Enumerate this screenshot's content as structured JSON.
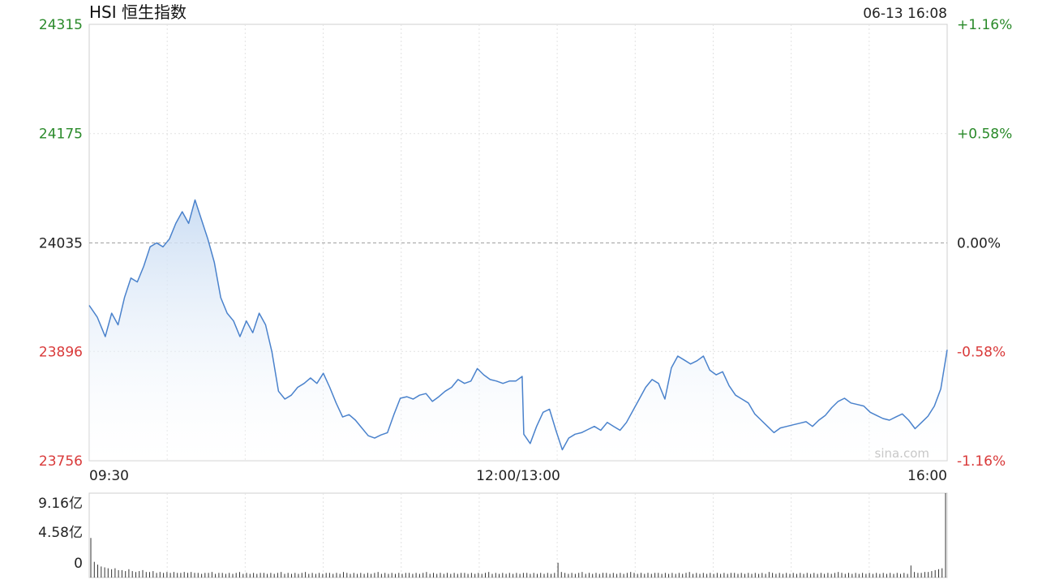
{
  "header": {
    "title": "HSI 恒生指数",
    "timestamp": "06-13 16:08"
  },
  "watermark": "sina.com",
  "colors": {
    "line": "#4a82cc",
    "fill_top": "#c9dcf3",
    "up": "#2a8a2a",
    "down": "#d93a3a",
    "grid": "#d8d8d8",
    "volume": "#333333"
  },
  "chart_data": {
    "type": "line",
    "title": "HSI 恒生指数",
    "prev_close": 24035,
    "ylim": [
      23756,
      24315
    ],
    "y_ticks_left": [
      {
        "value": 24315,
        "label": "24315",
        "tone": "up"
      },
      {
        "value": 24175,
        "label": "24175",
        "tone": "up"
      },
      {
        "value": 24035,
        "label": "24035",
        "tone": "flat"
      },
      {
        "value": 23896,
        "label": "23896",
        "tone": "down"
      },
      {
        "value": 23756,
        "label": "23756",
        "tone": "down"
      }
    ],
    "y_ticks_right": [
      {
        "value": 24315,
        "label": "+1.16%",
        "tone": "up"
      },
      {
        "value": 24175,
        "label": "+0.58%",
        "tone": "up"
      },
      {
        "value": 24035,
        "label": "0.00%",
        "tone": "flat"
      },
      {
        "value": 23896,
        "label": "-0.58%",
        "tone": "down"
      },
      {
        "value": 23756,
        "label": "-1.16%",
        "tone": "down"
      }
    ],
    "x_ticks": [
      {
        "value": "09:30",
        "label": "09:30"
      },
      {
        "value": "12:00/13:00",
        "label": "12:00/13:00"
      },
      {
        "value": "16:00",
        "label": "16:00"
      }
    ],
    "series": [
      {
        "values": [
          [
            0,
            23955
          ],
          [
            5,
            23940
          ],
          [
            10,
            23915
          ],
          [
            14,
            23945
          ],
          [
            18,
            23930
          ],
          [
            22,
            23965
          ],
          [
            26,
            23990
          ],
          [
            30,
            23985
          ],
          [
            34,
            24005
          ],
          [
            38,
            24030
          ],
          [
            42,
            24035
          ],
          [
            46,
            24030
          ],
          [
            50,
            24040
          ],
          [
            54,
            24060
          ],
          [
            58,
            24075
          ],
          [
            62,
            24060
          ],
          [
            66,
            24090
          ],
          [
            70,
            24065
          ],
          [
            74,
            24040
          ],
          [
            78,
            24010
          ],
          [
            82,
            23965
          ],
          [
            86,
            23945
          ],
          [
            90,
            23935
          ],
          [
            94,
            23915
          ],
          [
            98,
            23935
          ],
          [
            102,
            23920
          ],
          [
            106,
            23945
          ],
          [
            110,
            23930
          ],
          [
            114,
            23895
          ],
          [
            118,
            23845
          ],
          [
            122,
            23835
          ],
          [
            126,
            23840
          ],
          [
            130,
            23850
          ],
          [
            134,
            23855
          ],
          [
            138,
            23862
          ],
          [
            142,
            23855
          ],
          [
            146,
            23868
          ],
          [
            150,
            23850
          ],
          [
            154,
            23830
          ],
          [
            158,
            23812
          ],
          [
            162,
            23815
          ],
          [
            166,
            23808
          ],
          [
            170,
            23798
          ],
          [
            174,
            23788
          ],
          [
            178,
            23785
          ],
          [
            182,
            23789
          ],
          [
            186,
            23792
          ],
          [
            190,
            23815
          ],
          [
            194,
            23836
          ],
          [
            198,
            23838
          ],
          [
            202,
            23835
          ],
          [
            206,
            23840
          ],
          [
            210,
            23842
          ],
          [
            214,
            23832
          ],
          [
            218,
            23838
          ],
          [
            222,
            23845
          ],
          [
            226,
            23850
          ],
          [
            230,
            23860
          ],
          [
            234,
            23855
          ],
          [
            238,
            23858
          ],
          [
            242,
            23874
          ],
          [
            246,
            23866
          ],
          [
            250,
            23860
          ],
          [
            254,
            23858
          ],
          [
            258,
            23855
          ],
          [
            262,
            23858
          ],
          [
            266,
            23858
          ],
          [
            270,
            23864
          ],
          [
            271,
            23790
          ],
          [
            275,
            23778
          ],
          [
            279,
            23800
          ],
          [
            283,
            23818
          ],
          [
            287,
            23822
          ],
          [
            291,
            23795
          ],
          [
            295,
            23770
          ],
          [
            299,
            23785
          ],
          [
            303,
            23790
          ],
          [
            307,
            23792
          ],
          [
            311,
            23796
          ],
          [
            315,
            23800
          ],
          [
            319,
            23795
          ],
          [
            323,
            23805
          ],
          [
            327,
            23800
          ],
          [
            331,
            23795
          ],
          [
            335,
            23805
          ],
          [
            339,
            23820
          ],
          [
            343,
            23835
          ],
          [
            347,
            23850
          ],
          [
            351,
            23860
          ],
          [
            355,
            23855
          ],
          [
            359,
            23835
          ],
          [
            363,
            23875
          ],
          [
            367,
            23890
          ],
          [
            371,
            23885
          ],
          [
            375,
            23880
          ],
          [
            379,
            23884
          ],
          [
            383,
            23890
          ],
          [
            387,
            23872
          ],
          [
            391,
            23866
          ],
          [
            395,
            23870
          ],
          [
            399,
            23852
          ],
          [
            403,
            23840
          ],
          [
            407,
            23835
          ],
          [
            411,
            23830
          ],
          [
            415,
            23816
          ],
          [
            419,
            23808
          ],
          [
            423,
            23800
          ],
          [
            427,
            23792
          ],
          [
            431,
            23798
          ],
          [
            435,
            23800
          ],
          [
            439,
            23802
          ],
          [
            443,
            23804
          ],
          [
            447,
            23806
          ],
          [
            451,
            23800
          ],
          [
            455,
            23808
          ],
          [
            459,
            23814
          ],
          [
            463,
            23824
          ],
          [
            467,
            23832
          ],
          [
            471,
            23836
          ],
          [
            475,
            23830
          ],
          [
            479,
            23828
          ],
          [
            483,
            23826
          ],
          [
            487,
            23818
          ],
          [
            491,
            23814
          ],
          [
            495,
            23810
          ],
          [
            499,
            23808
          ],
          [
            503,
            23812
          ],
          [
            507,
            23816
          ],
          [
            511,
            23808
          ],
          [
            515,
            23797
          ],
          [
            519,
            23805
          ],
          [
            523,
            23813
          ],
          [
            527,
            23826
          ],
          [
            531,
            23848
          ],
          [
            535,
            23898
          ]
        ]
      }
    ],
    "volume": {
      "y_ticks": [
        {
          "value": 9.16,
          "label": "9.16亿"
        },
        {
          "value": 4.58,
          "label": "4.58亿"
        },
        {
          "value": 0,
          "label": "0"
        }
      ],
      "ylim": [
        0,
        9.16
      ],
      "values": [
        4.3,
        1.7,
        1.4,
        1.2,
        1.1,
        1.0,
        0.9,
        1.0,
        0.8,
        0.8,
        0.7,
        0.9,
        0.7,
        0.6,
        0.7,
        0.8,
        0.6,
        0.6,
        0.7,
        0.5,
        0.6,
        0.5,
        0.6,
        0.5,
        0.6,
        0.5,
        0.5,
        0.6,
        0.5,
        0.6,
        0.5,
        0.5,
        0.4,
        0.5,
        0.5,
        0.6,
        0.4,
        0.5,
        0.5,
        0.4,
        0.5,
        0.4,
        0.5,
        0.6,
        0.4,
        0.5,
        0.4,
        0.5,
        0.4,
        0.5,
        0.5,
        0.4,
        0.5,
        0.4,
        0.5,
        0.6,
        0.4,
        0.5,
        0.4,
        0.5,
        0.4,
        0.5,
        0.6,
        0.4,
        0.5,
        0.4,
        0.5,
        0.4,
        0.5,
        0.5,
        0.4,
        0.5,
        0.4,
        0.6,
        0.5,
        0.4,
        0.5,
        0.4,
        0.5,
        0.4,
        0.5,
        0.4,
        0.5,
        0.6,
        0.4,
        0.5,
        0.4,
        0.5,
        0.4,
        0.5,
        0.4,
        0.5,
        0.5,
        0.4,
        0.5,
        0.4,
        0.5,
        0.6,
        0.4,
        0.5,
        0.4,
        0.5,
        0.4,
        0.5,
        0.4,
        0.5,
        0.4,
        0.5,
        0.5,
        0.4,
        0.5,
        0.4,
        0.5,
        0.4,
        0.5,
        0.6,
        0.4,
        0.5,
        0.4,
        0.5,
        0.4,
        0.5,
        0.4,
        0.5,
        0.4,
        0.5,
        0.5,
        0.4,
        0.5,
        0.4,
        0.5,
        0.4,
        0.5,
        0.4,
        0.5,
        1.6,
        0.6,
        0.5,
        0.4,
        0.5,
        0.4,
        0.5,
        0.6,
        0.4,
        0.5,
        0.4,
        0.5,
        0.4,
        0.5,
        0.5,
        0.4,
        0.5,
        0.4,
        0.5,
        0.4,
        0.5,
        0.6,
        0.5,
        0.4,
        0.5,
        0.4,
        0.5,
        0.4,
        0.5,
        0.5,
        0.4,
        0.5,
        0.4,
        0.5,
        0.4,
        0.5,
        0.4,
        0.5,
        0.6,
        0.4,
        0.5,
        0.4,
        0.5,
        0.4,
        0.5,
        0.4,
        0.5,
        0.4,
        0.5,
        0.4,
        0.5,
        0.5,
        0.4,
        0.5,
        0.4,
        0.5,
        0.4,
        0.5,
        0.4,
        0.5,
        0.4,
        0.6,
        0.5,
        0.4,
        0.5,
        0.4,
        0.5,
        0.4,
        0.5,
        0.4,
        0.5,
        0.4,
        0.5,
        0.4,
        0.5,
        0.4,
        0.5,
        0.4,
        0.5,
        0.4,
        0.5,
        0.6,
        0.5,
        0.4,
        0.5,
        0.4,
        0.5,
        0.4,
        0.5,
        0.4,
        0.5,
        0.4,
        0.5,
        0.4,
        0.5,
        0.4,
        0.5,
        0.4,
        0.5,
        0.4,
        0.5,
        0.4,
        1.3,
        0.6,
        0.5,
        0.5,
        0.6,
        0.6,
        0.7,
        0.8,
        0.9,
        1.0,
        9.16
      ]
    }
  }
}
